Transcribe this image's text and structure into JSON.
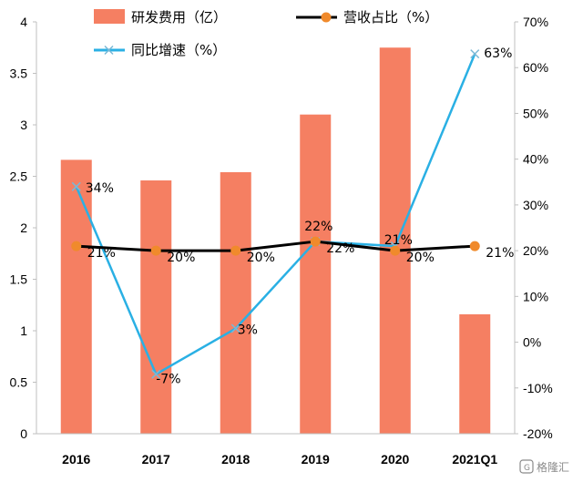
{
  "chart_data": {
    "type": "bar",
    "categories": [
      "2016",
      "2017",
      "2018",
      "2019",
      "2020",
      "2021Q1"
    ],
    "series": [
      {
        "name": "研发费用（亿）",
        "type": "bar",
        "axis": "left",
        "values": [
          2.66,
          2.46,
          2.54,
          3.1,
          3.75,
          1.16
        ],
        "color": "#f57f62"
      },
      {
        "name": "营收占比（%）",
        "type": "line",
        "axis": "right",
        "values": [
          21,
          20,
          20,
          22,
          20,
          21
        ],
        "labels": [
          "21%",
          "20%",
          "20%",
          "22%",
          "20%",
          "21%"
        ],
        "color": "#000000",
        "marker_color": "#f08a2c"
      },
      {
        "name": "同比增速（%）",
        "type": "line",
        "axis": "right",
        "values": [
          34,
          -7,
          3,
          22,
          21,
          63
        ],
        "labels": [
          "34%",
          "-7%",
          "3%",
          "22%",
          "21%",
          "63%"
        ],
        "color": "#2ab0e4"
      }
    ],
    "y_left": {
      "ylim": [
        0,
        4
      ],
      "ticks": [
        0,
        0.5,
        1,
        1.5,
        2,
        2.5,
        3,
        3.5,
        4
      ],
      "tick_labels": [
        "0",
        "0.5",
        "1",
        "1.5",
        "2",
        "2.5",
        "3",
        "3.5",
        "4"
      ]
    },
    "y_right": {
      "ylim": [
        -20,
        70
      ],
      "ticks": [
        -20,
        -10,
        0,
        10,
        20,
        30,
        40,
        50,
        60,
        70
      ],
      "tick_labels": [
        "-20%",
        "-10%",
        "0%",
        "10%",
        "20%",
        "30%",
        "40%",
        "50%",
        "60%",
        "70%"
      ]
    },
    "legend": "top",
    "grid": false
  },
  "watermark": "格隆汇"
}
